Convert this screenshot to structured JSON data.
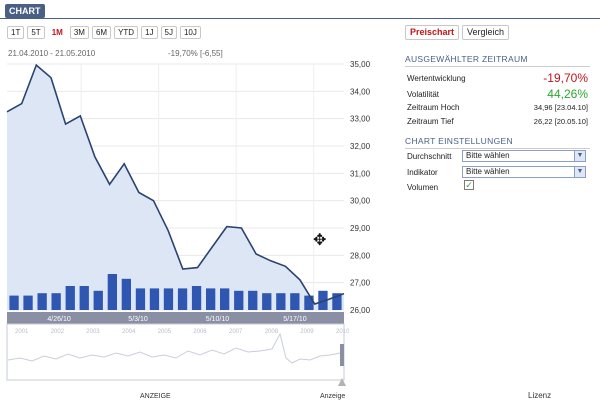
{
  "header": {
    "title": "CHART"
  },
  "periods": [
    "1T",
    "5T",
    "1M",
    "3M",
    "6M",
    "YTD",
    "1J",
    "5J",
    "10J"
  ],
  "period_active": "1M",
  "range": "21.04.2010 - 21.05.2010",
  "change": "-19,70% [-6,55]",
  "tabs": {
    "price": "Preischart",
    "compare": "Vergleich"
  },
  "selected": {
    "title": "AUSGEWÄHLTER ZEITRAUM",
    "performance_label": "Wertentwicklung",
    "performance_value": "-19,70%",
    "volatility_label": "Volatilität",
    "volatility_value": "44,26%",
    "high_label": "Zeitraum Hoch",
    "high_value": "34,96 [23.04.10]",
    "low_label": "Zeitraum Tief",
    "low_value": "26,22 [20.05.10]"
  },
  "settings": {
    "title": "CHART EINSTELLUNGEN",
    "average_label": "Durchschnitt",
    "average_value": "Bitte wählen",
    "indicator_label": "Indikator",
    "indicator_value": "Bitte wählen",
    "volume_label": "Volumen"
  },
  "bottom": {
    "ad": "ANZEIGE",
    "ad2": "Anzeige",
    "legal": "Lizenz"
  },
  "colors": {
    "accent": "#c0151b",
    "navy": "#4a5f86",
    "green": "#2ea62e",
    "line": "#2b4370",
    "bar": "#2f56b0",
    "fill": "#dde6f4"
  },
  "chart_data": {
    "type": "line",
    "y_ticks": [
      "35,00",
      "34,00",
      "33,00",
      "32,00",
      "31,00",
      "30,00",
      "29,00",
      "28,00",
      "27,00",
      "26,00"
    ],
    "ylim": [
      26,
      35
    ],
    "x_labels": [
      "4/26/10",
      "5/3/10",
      "5/10/10",
      "5/17/10"
    ],
    "nav_years": [
      "2001",
      "2002",
      "2003",
      "2004",
      "2005",
      "2006",
      "2007",
      "2008",
      "2009",
      "2010"
    ],
    "series": [
      {
        "values": [
          33.25,
          33.55,
          34.96,
          34.5,
          32.8,
          33.1,
          31.6,
          30.6,
          31.35,
          30.3,
          30.0,
          28.9,
          27.5,
          27.55,
          28.3,
          29.05,
          29.0,
          28.05,
          27.8,
          27.6,
          27.1,
          26.22,
          26.4,
          26.6
        ]
      }
    ],
    "volume": [
      6,
      6,
      7,
      7,
      10,
      10,
      8,
      15,
      13,
      9,
      9,
      9,
      9,
      10,
      9,
      9,
      8,
      8,
      7,
      7,
      7,
      6,
      8,
      7
    ]
  }
}
